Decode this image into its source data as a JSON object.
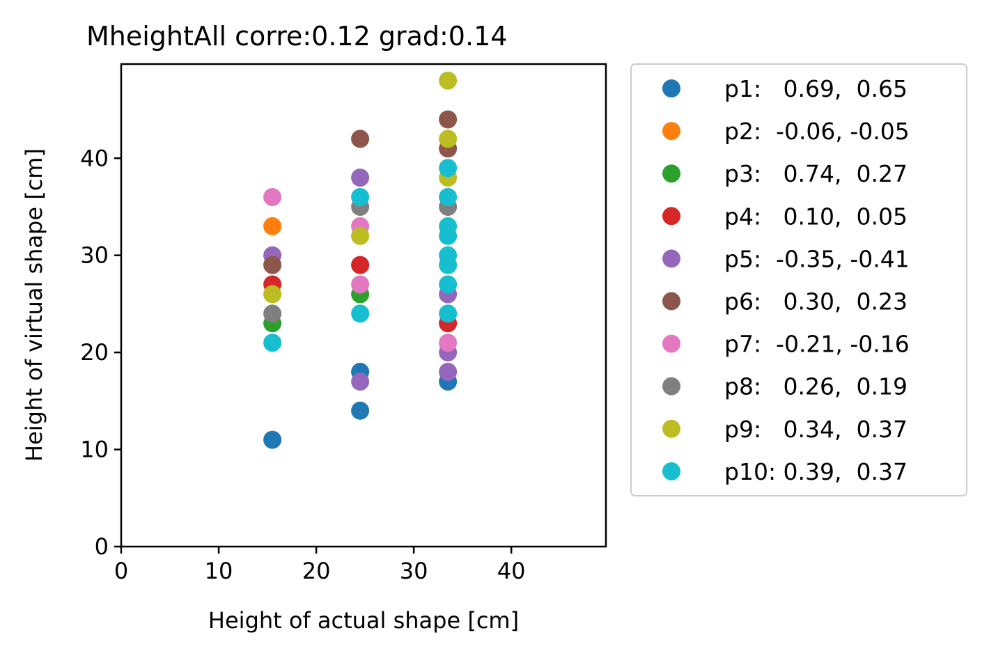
{
  "chart_data": {
    "type": "scatter",
    "title": "MheightAll corre:0.12 grad:0.14",
    "xlabel": "Height of actual shape [cm]",
    "ylabel": "Height of virtual shape [cm]",
    "xlim": [
      0,
      49.7
    ],
    "ylim": [
      0,
      49.7
    ],
    "xticks": [
      0,
      10,
      20,
      30,
      40
    ],
    "yticks": [
      0,
      10,
      20,
      30,
      40
    ],
    "grid": false,
    "legend_position": "outside-right",
    "series": [
      {
        "name": "p1:   0.69,  0.65",
        "color": "#1f77b4",
        "points": [
          [
            15.5,
            11
          ],
          [
            24.5,
            18
          ],
          [
            24.5,
            14
          ],
          [
            33.5,
            17
          ]
        ]
      },
      {
        "name": "p2:  -0.06, -0.05",
        "color": "#ff7f0e",
        "points": [
          [
            15.5,
            33
          ]
        ]
      },
      {
        "name": "p3:   0.74,  0.27",
        "color": "#2ca02c",
        "points": [
          [
            15.5,
            23
          ],
          [
            24.5,
            26
          ]
        ]
      },
      {
        "name": "p4:   0.10,  0.05",
        "color": "#d62728",
        "points": [
          [
            15.5,
            27
          ],
          [
            24.5,
            29
          ],
          [
            33.5,
            23
          ]
        ]
      },
      {
        "name": "p5:  -0.35, -0.41",
        "color": "#9467bd",
        "points": [
          [
            15.5,
            30
          ],
          [
            24.5,
            38
          ],
          [
            24.5,
            17
          ],
          [
            33.5,
            26
          ],
          [
            33.5,
            20
          ],
          [
            33.5,
            18
          ]
        ]
      },
      {
        "name": "p6:   0.30,  0.23",
        "color": "#8c564b",
        "points": [
          [
            15.5,
            29
          ],
          [
            24.5,
            42
          ],
          [
            33.5,
            44
          ],
          [
            33.5,
            41
          ]
        ]
      },
      {
        "name": "p7:  -0.21, -0.16",
        "color": "#e377c2",
        "points": [
          [
            15.5,
            36
          ],
          [
            24.5,
            33
          ],
          [
            24.5,
            27
          ],
          [
            33.5,
            21
          ]
        ]
      },
      {
        "name": "p8:   0.26,  0.19",
        "color": "#7f7f7f",
        "points": [
          [
            15.5,
            24
          ],
          [
            24.5,
            35
          ],
          [
            33.5,
            35
          ]
        ]
      },
      {
        "name": "p9:   0.34,  0.37",
        "color": "#bcbd22",
        "points": [
          [
            15.5,
            26
          ],
          [
            24.5,
            32
          ],
          [
            33.5,
            48
          ],
          [
            33.5,
            42
          ],
          [
            33.5,
            38
          ]
        ]
      },
      {
        "name": "p10: 0.39,  0.37",
        "color": "#17becf",
        "points": [
          [
            15.5,
            21
          ],
          [
            24.5,
            36
          ],
          [
            24.5,
            24
          ],
          [
            33.5,
            39
          ],
          [
            33.5,
            36
          ],
          [
            33.5,
            33
          ],
          [
            33.5,
            32
          ],
          [
            33.5,
            30
          ],
          [
            33.5,
            29
          ],
          [
            33.5,
            27
          ],
          [
            33.5,
            24
          ]
        ]
      }
    ]
  }
}
